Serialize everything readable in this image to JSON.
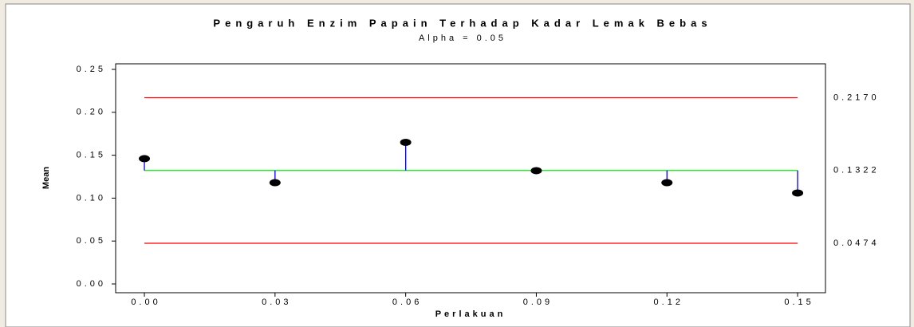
{
  "chart_data": {
    "type": "anom",
    "title": "Pengaruh Enzim Papain Terhadap Kadar Lemak Bebas",
    "subtitle": "Alpha = 0.05",
    "xlabel": "Perlakuan",
    "ylabel": "Mean",
    "x": [
      0,
      0.03,
      0.06,
      0.09,
      0.12,
      0.15
    ],
    "values": [
      0.146,
      0.118,
      0.165,
      0.132,
      0.118,
      0.106
    ],
    "color": "#000000",
    "stem_color": "#0000ff",
    "center": {
      "value": 0.1322,
      "label": "0.1322",
      "color": "#00ee00"
    },
    "limits": [
      {
        "value": 0.217,
        "label": "0.2170",
        "color": "#ff0000"
      },
      {
        "value": 0.0474,
        "label": "0.0474",
        "color": "#ff0000"
      }
    ],
    "xlim": [
      -0.0066,
      0.1564
    ],
    "ylim": [
      -0.0102,
      0.2565
    ],
    "xticks": [
      {
        "value": 0,
        "label": "0.00"
      },
      {
        "value": 0.03,
        "label": "0.03"
      },
      {
        "value": 0.06,
        "label": "0.06"
      },
      {
        "value": 0.09,
        "label": "0.09"
      },
      {
        "value": 0.12,
        "label": "0.12"
      },
      {
        "value": 0.15,
        "label": "0.15"
      }
    ],
    "yticks": [
      {
        "value": 0,
        "label": "0.00"
      },
      {
        "value": 0.05,
        "label": "0.05"
      },
      {
        "value": 0.1,
        "label": "0.10"
      },
      {
        "value": 0.15,
        "label": "0.15"
      },
      {
        "value": 0.2,
        "label": "0.20"
      },
      {
        "value": 0.25,
        "label": "0.25"
      }
    ]
  }
}
